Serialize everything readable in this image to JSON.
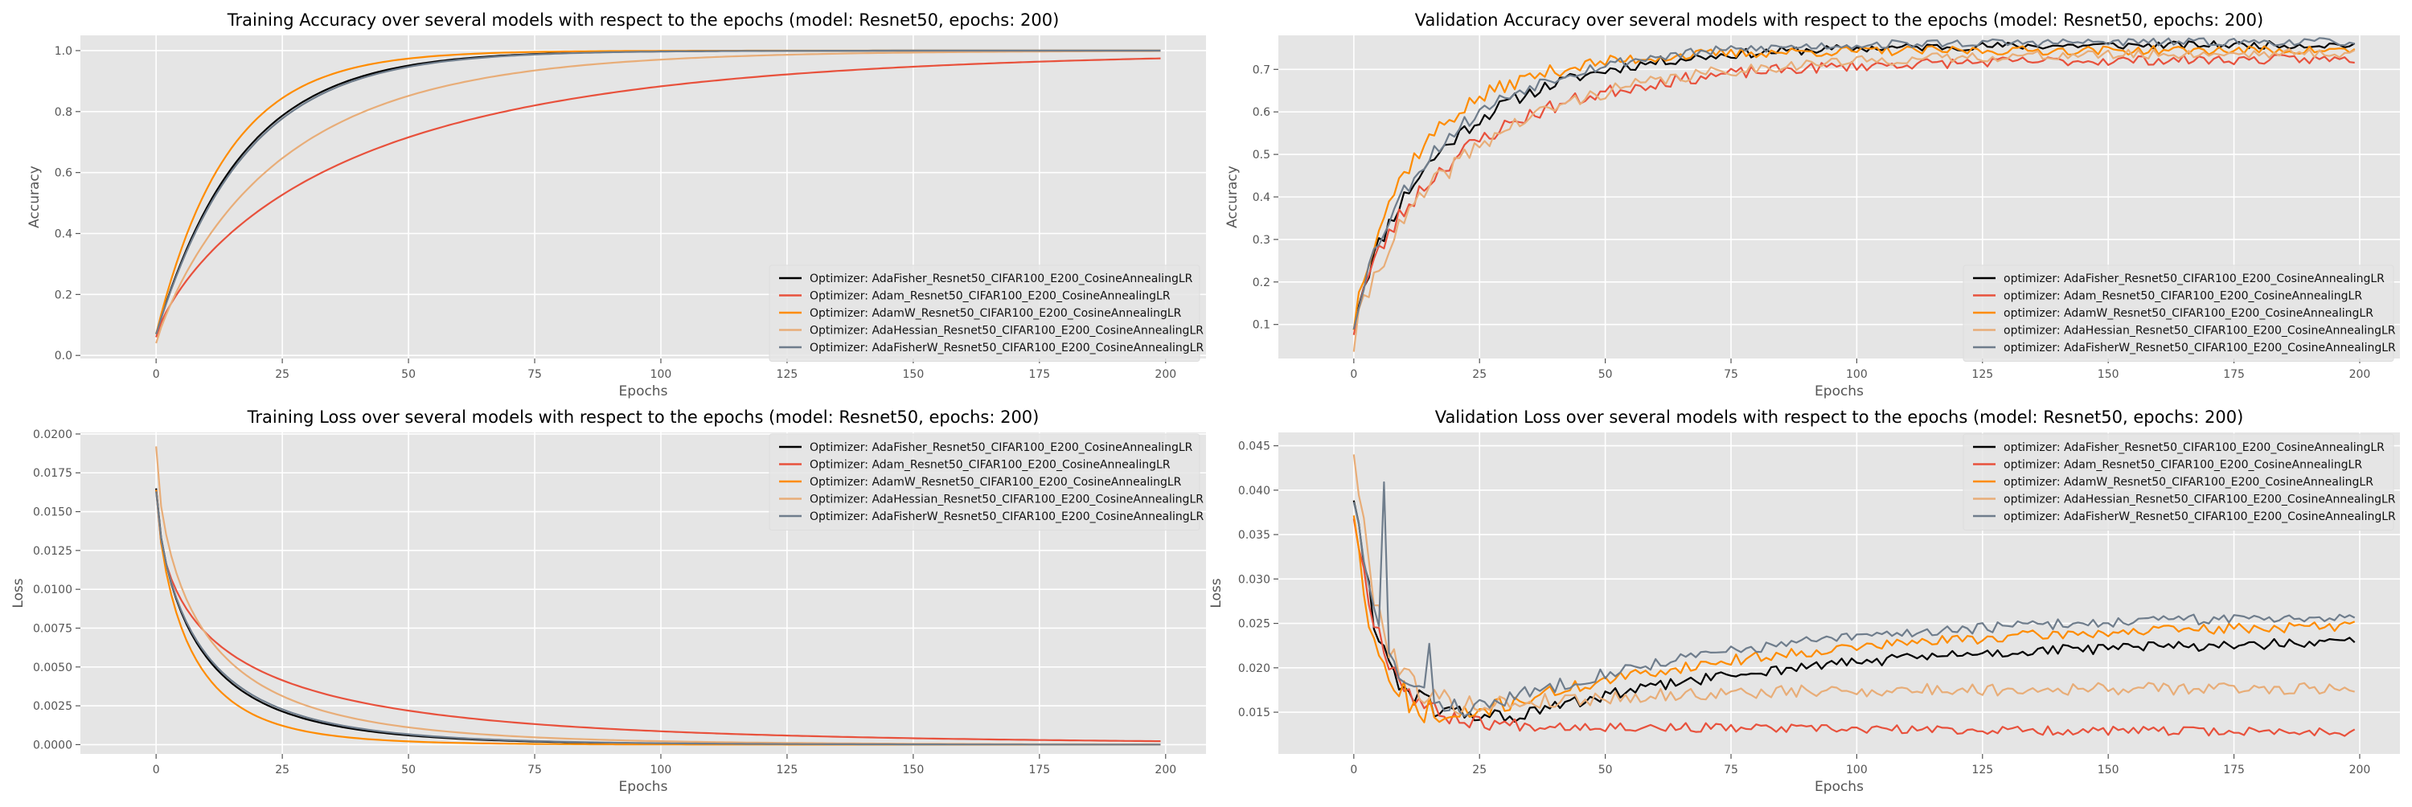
{
  "chart_data": [
    {
      "type": "line",
      "title": "Training Accuracy over several models with respect to the epochs (model: Resnet50, epochs: 200)",
      "xlabel": "Epochs",
      "ylabel": "Accuracy",
      "xlim": [
        -15,
        208
      ],
      "ylim": [
        -0.01,
        1.05
      ],
      "xticks": [
        0,
        25,
        50,
        75,
        100,
        125,
        150,
        175,
        200
      ],
      "xtick_labels": [
        "0",
        "25",
        "50",
        "75",
        "100",
        "125",
        "150",
        "175",
        "200"
      ],
      "yticks": [
        0.0,
        0.2,
        0.4,
        0.6,
        0.8,
        1.0
      ],
      "ytick_labels": [
        "0.0",
        "0.2",
        "0.4",
        "0.6",
        "0.8",
        "1.0"
      ],
      "grid": true,
      "legend": "lower-right",
      "series": [
        {
          "name": "Optimizer: AdaFisher_Resnet50_CIFAR100_E200_CosineAnnealingLR",
          "color": "#000000",
          "curve": {
            "kind": "sat",
            "y0": 0.07,
            "yinf": 1.0,
            "tau": 17,
            "p": 1.0
          }
        },
        {
          "name": "Optimizer: Adam_Resnet50_CIFAR100_E200_CosineAnnealingLR",
          "color": "#e8513c",
          "curve": {
            "kind": "sat",
            "y0": 0.06,
            "yinf": 1.0,
            "tau": 40,
            "p": 0.8
          }
        },
        {
          "name": "Optimizer: AdamW_Resnet50_CIFAR100_E200_CosineAnnealingLR",
          "color": "#ff8c00",
          "curve": {
            "kind": "sat",
            "y0": 0.07,
            "yinf": 1.0,
            "tau": 14,
            "p": 1.0
          }
        },
        {
          "name": "Optimizer: AdaHessian_Resnet50_CIFAR100_E200_CosineAnnealingLR",
          "color": "#e8ad78",
          "curve": {
            "kind": "sat",
            "y0": 0.04,
            "yinf": 1.0,
            "tau": 25,
            "p": 0.9
          }
        },
        {
          "name": "Optimizer: AdaFisherW_Resnet50_CIFAR100_E200_CosineAnnealingLR",
          "color": "#6f7d8c",
          "curve": {
            "kind": "sat",
            "y0": 0.07,
            "yinf": 1.0,
            "tau": 17.5,
            "p": 1.0
          }
        }
      ]
    },
    {
      "type": "line",
      "title": "Validation Accuracy over several models with respect to the epochs (model: Resnet50, epochs: 200)",
      "xlabel": "Epochs",
      "ylabel": "Accuracy",
      "xlim": [
        -15,
        208
      ],
      "ylim": [
        0.02,
        0.78
      ],
      "xticks": [
        0,
        25,
        50,
        75,
        100,
        125,
        150,
        175,
        200
      ],
      "xtick_labels": [
        "0",
        "25",
        "50",
        "75",
        "100",
        "125",
        "150",
        "175",
        "200"
      ],
      "yticks": [
        0.1,
        0.2,
        0.3,
        0.4,
        0.5,
        0.6,
        0.7
      ],
      "ytick_labels": [
        "0.1",
        "0.2",
        "0.3",
        "0.4",
        "0.5",
        "0.6",
        "0.7"
      ],
      "grid": true,
      "legend": "lower-right",
      "series": [
        {
          "name": "optimizer: AdaFisher_Resnet50_CIFAR100_E200_CosineAnnealingLR",
          "color": "#000000",
          "curve": {
            "kind": "sat",
            "y0": 0.1,
            "yinf": 0.758,
            "tau": 18,
            "p": 0.85,
            "noise": 0.018,
            "seed": 11
          }
        },
        {
          "name": "optimizer: Adam_Resnet50_CIFAR100_E200_CosineAnnealingLR",
          "color": "#e8513c",
          "curve": {
            "kind": "sat",
            "y0": 0.09,
            "yinf": 0.725,
            "tau": 20,
            "p": 0.8,
            "noise": 0.022,
            "seed": 23
          }
        },
        {
          "name": "optimizer: AdamW_Resnet50_CIFAR100_E200_CosineAnnealingLR",
          "color": "#ff8c00",
          "curve": {
            "kind": "sat",
            "y0": 0.1,
            "yinf": 0.745,
            "tau": 13,
            "p": 0.85,
            "noise": 0.02,
            "seed": 37
          }
        },
        {
          "name": "optimizer: AdaHessian_Resnet50_CIFAR100_E200_CosineAnnealingLR",
          "color": "#e8ad78",
          "curve": {
            "kind": "sat",
            "y0": 0.05,
            "yinf": 0.74,
            "tau": 21,
            "p": 0.8,
            "noise": 0.022,
            "seed": 41
          }
        },
        {
          "name": "optimizer: AdaFisherW_Resnet50_CIFAR100_E200_CosineAnnealingLR",
          "color": "#6f7d8c",
          "curve": {
            "kind": "sat",
            "y0": 0.1,
            "yinf": 0.765,
            "tau": 17,
            "p": 0.85,
            "noise": 0.018,
            "seed": 53
          }
        }
      ]
    },
    {
      "type": "line",
      "title": "Training Loss over several models with respect to the epochs (model: Resnet50, epochs: 200)",
      "xlabel": "Epochs",
      "ylabel": "Loss",
      "xlim": [
        -15,
        208
      ],
      "ylim": [
        -0.0006,
        0.0201
      ],
      "xticks": [
        0,
        25,
        50,
        75,
        100,
        125,
        150,
        175,
        200
      ],
      "xtick_labels": [
        "0",
        "25",
        "50",
        "75",
        "100",
        "125",
        "150",
        "175",
        "200"
      ],
      "yticks": [
        0.0,
        0.0025,
        0.005,
        0.0075,
        0.01,
        0.0125,
        0.015,
        0.0175,
        0.02
      ],
      "ytick_labels": [
        "0.0000",
        "0.0025",
        "0.0050",
        "0.0075",
        "0.0100",
        "0.0125",
        "0.0150",
        "0.0175",
        "0.0200"
      ],
      "grid": true,
      "legend": "upper-right",
      "series": [
        {
          "name": "Optimizer: AdaFisher_Resnet50_CIFAR100_E200_CosineAnnealingLR",
          "color": "#000000",
          "curve": {
            "kind": "decay",
            "a": 0.0165,
            "b": 0.0,
            "tau": 9,
            "p": 0.7
          }
        },
        {
          "name": "Optimizer: Adam_Resnet50_CIFAR100_E200_CosineAnnealingLR",
          "color": "#e8513c",
          "curve": {
            "kind": "decay",
            "a": 0.0164,
            "b": 0.0,
            "tau": 14,
            "p": 0.55
          }
        },
        {
          "name": "Optimizer: AdamW_Resnet50_CIFAR100_E200_CosineAnnealingLR",
          "color": "#ff8c00",
          "curve": {
            "kind": "decay",
            "a": 0.0164,
            "b": 0.0,
            "tau": 7,
            "p": 0.75
          }
        },
        {
          "name": "Optimizer: AdaHessian_Resnet50_CIFAR100_E200_CosineAnnealingLR",
          "color": "#e8ad78",
          "curve": {
            "kind": "decay",
            "a": 0.0192,
            "b": 0.0,
            "tau": 10,
            "p": 0.65
          }
        },
        {
          "name": "Optimizer: AdaFisherW_Resnet50_CIFAR100_E200_CosineAnnealingLR",
          "color": "#6f7d8c",
          "curve": {
            "kind": "decay",
            "a": 0.0163,
            "b": 0.0,
            "tau": 9.5,
            "p": 0.7
          }
        }
      ]
    },
    {
      "type": "line",
      "title": "Validation Loss over several models with respect to the epochs (model: Resnet50, epochs: 200)",
      "xlabel": "Epochs",
      "ylabel": "Loss",
      "xlim": [
        -15,
        208
      ],
      "ylim": [
        0.0103,
        0.0465
      ],
      "xticks": [
        0,
        25,
        50,
        75,
        100,
        125,
        150,
        175,
        200
      ],
      "xtick_labels": [
        "0",
        "25",
        "50",
        "75",
        "100",
        "125",
        "150",
        "175",
        "200"
      ],
      "yticks": [
        0.015,
        0.02,
        0.025,
        0.03,
        0.035,
        0.04,
        0.045
      ],
      "ytick_labels": [
        "0.015",
        "0.020",
        "0.025",
        "0.030",
        "0.035",
        "0.040",
        "0.045"
      ],
      "grid": true,
      "legend": "upper-right",
      "series": [
        {
          "name": "optimizer: AdaFisher_Resnet50_CIFAR100_E200_CosineAnnealingLR",
          "color": "#000000",
          "curve": {
            "kind": "uloss",
            "y0": 0.0397,
            "dtau": 5,
            "min": 0.0145,
            "tmin": 33,
            "end": 0.0228,
            "rtau": 55,
            "noise": 0.0006,
            "seed": 61
          }
        },
        {
          "name": "optimizer: Adam_Resnet50_CIFAR100_E200_CosineAnnealingLR",
          "color": "#e8513c",
          "curve": {
            "kind": "uloss",
            "y0": 0.0375,
            "dtau": 6,
            "min": 0.0135,
            "tmin": 40,
            "end": 0.0128,
            "rtau": 80,
            "noise": 0.0005,
            "seed": 67
          }
        },
        {
          "name": "optimizer: AdamW_Resnet50_CIFAR100_E200_CosineAnnealingLR",
          "color": "#ff8c00",
          "curve": {
            "kind": "uloss",
            "y0": 0.038,
            "dtau": 4,
            "min": 0.0138,
            "tmin": 18,
            "end": 0.0247,
            "rtau": 60,
            "noise": 0.0006,
            "seed": 71,
            "spikes": [
              [
                10,
                0.004
              ],
              [
                15,
                0.002
              ]
            ]
          }
        },
        {
          "name": "optimizer: AdaHessian_Resnet50_CIFAR100_E200_CosineAnnealingLR",
          "color": "#e8ad78",
          "curve": {
            "kind": "uloss",
            "y0": 0.045,
            "dtau": 5,
            "min": 0.0155,
            "tmin": 22,
            "end": 0.0177,
            "rtau": 40,
            "noise": 0.0007,
            "seed": 79
          }
        },
        {
          "name": "optimizer: AdaFisherW_Resnet50_CIFAR100_E200_CosineAnnealingLR",
          "color": "#6f7d8c",
          "curve": {
            "kind": "uloss",
            "y0": 0.0395,
            "dtau": 5,
            "min": 0.0152,
            "tmin": 24,
            "end": 0.0258,
            "rtau": 55,
            "noise": 0.0006,
            "seed": 83,
            "spikes": [
              [
                6,
                0.0195
              ],
              [
                15,
                0.007
              ]
            ]
          }
        }
      ]
    }
  ]
}
